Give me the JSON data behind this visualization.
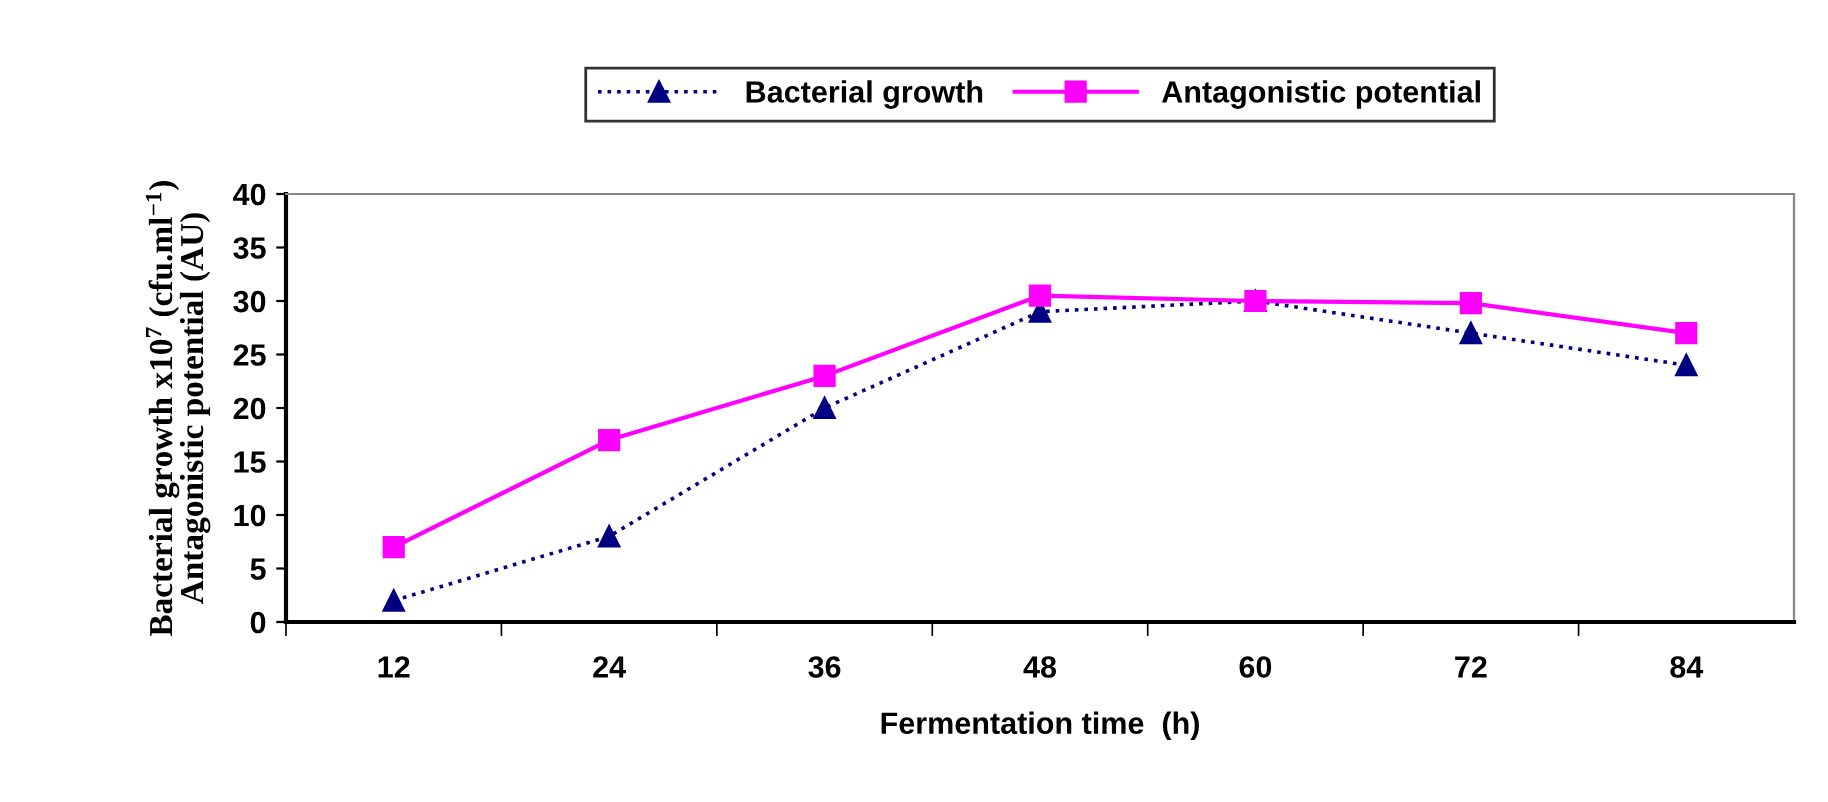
{
  "chart_data": {
    "type": "line",
    "xlabel": "Fermentation time  (h)",
    "ylabel": "Bacterial growth x10$^{7}$ (cfu.ml$^{−1}$)\nAntagonistic potential (AU)",
    "categories": [
      "12",
      "24",
      "36",
      "48",
      "60",
      "72",
      "84"
    ],
    "series": [
      {
        "name": "Bacterial growth",
        "color": "#000080",
        "values": [
          2,
          8,
          20,
          29,
          30,
          27,
          24
        ],
        "marker": "triangle",
        "line_style": "dotted"
      },
      {
        "name": "Antagonistic potential",
        "color": "#ff00ff",
        "values": [
          7,
          17,
          23,
          30.5,
          30,
          29.8,
          27
        ],
        "marker": "square",
        "line_style": "solid"
      }
    ],
    "ylim": [
      0,
      40
    ],
    "yticks": [
      0,
      5,
      10,
      15,
      20,
      25,
      30,
      35,
      40
    ],
    "grid": false,
    "legend": "top"
  }
}
